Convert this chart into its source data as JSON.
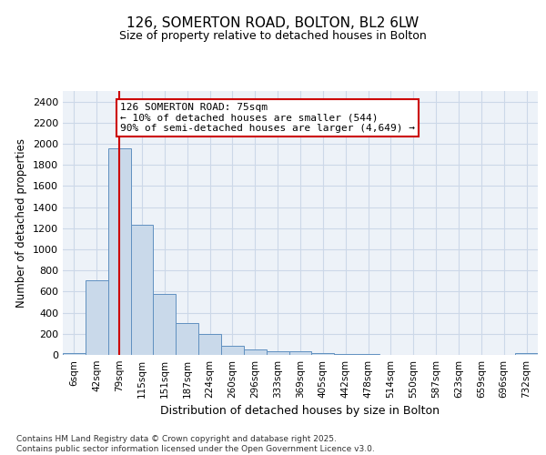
{
  "title_line1": "126, SOMERTON ROAD, BOLTON, BL2 6LW",
  "title_line2": "Size of property relative to detached houses in Bolton",
  "xlabel": "Distribution of detached houses by size in Bolton",
  "ylabel": "Number of detached properties",
  "categories": [
    "6sqm",
    "42sqm",
    "79sqm",
    "115sqm",
    "151sqm",
    "187sqm",
    "224sqm",
    "260sqm",
    "296sqm",
    "333sqm",
    "369sqm",
    "405sqm",
    "442sqm",
    "478sqm",
    "514sqm",
    "550sqm",
    "587sqm",
    "623sqm",
    "659sqm",
    "696sqm",
    "732sqm"
  ],
  "values": [
    18,
    710,
    1960,
    1230,
    580,
    305,
    195,
    85,
    48,
    32,
    32,
    15,
    10,
    5,
    4,
    4,
    3,
    2,
    2,
    2,
    18
  ],
  "bar_color": "#c9d9ea",
  "bar_edge_color": "#6090c0",
  "grid_color": "#ccd8e8",
  "background_color": "#edf2f8",
  "annotation_text": "126 SOMERTON ROAD: 75sqm\n← 10% of detached houses are smaller (544)\n90% of semi-detached houses are larger (4,649) →",
  "annotation_box_color": "#ffffff",
  "annotation_box_edge": "#cc0000",
  "vline_color": "#cc0000",
  "vline_x": 1.98,
  "ylim_max": 2500,
  "ytick_step": 200,
  "footer_text": "Contains HM Land Registry data © Crown copyright and database right 2025.\nContains public sector information licensed under the Open Government Licence v3.0."
}
